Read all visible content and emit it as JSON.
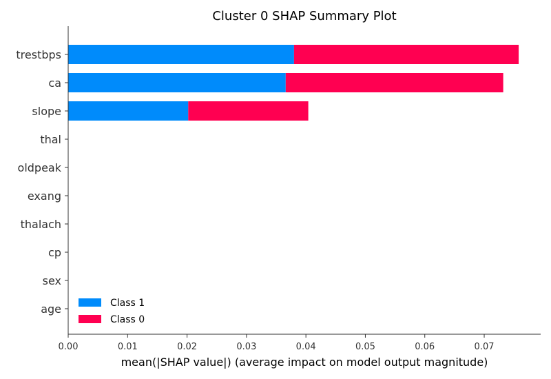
{
  "chart_data": {
    "type": "bar",
    "orientation": "horizontal",
    "stacked": true,
    "title": "Cluster 0 SHAP Summary Plot",
    "xlabel": "mean(|SHAP value|) (average impact on model output magnitude)",
    "ylabel": "",
    "categories": [
      "trestbps",
      "ca",
      "slope",
      "thal",
      "oldpeak",
      "exang",
      "thalach",
      "cp",
      "sex",
      "age"
    ],
    "series": [
      {
        "name": "Class 1",
        "color": "#008bfb",
        "values": [
          0.038,
          0.0366,
          0.0202,
          0,
          0,
          0,
          0,
          0,
          0,
          0
        ]
      },
      {
        "name": "Class 0",
        "color": "#ff0051",
        "values": [
          0.0378,
          0.0366,
          0.0202,
          0,
          0,
          0,
          0,
          0,
          0,
          0
        ]
      }
    ],
    "xlim": [
      0,
      0.0795
    ],
    "xticks": [
      0.0,
      0.01,
      0.02,
      0.03,
      0.04,
      0.05,
      0.06,
      0.07
    ],
    "xtick_labels": [
      "0.00",
      "0.01",
      "0.02",
      "0.03",
      "0.04",
      "0.05",
      "0.06",
      "0.07"
    ],
    "legend": {
      "placement": "lower-left",
      "entries": [
        "Class 1",
        "Class 0"
      ]
    },
    "grid": false
  }
}
